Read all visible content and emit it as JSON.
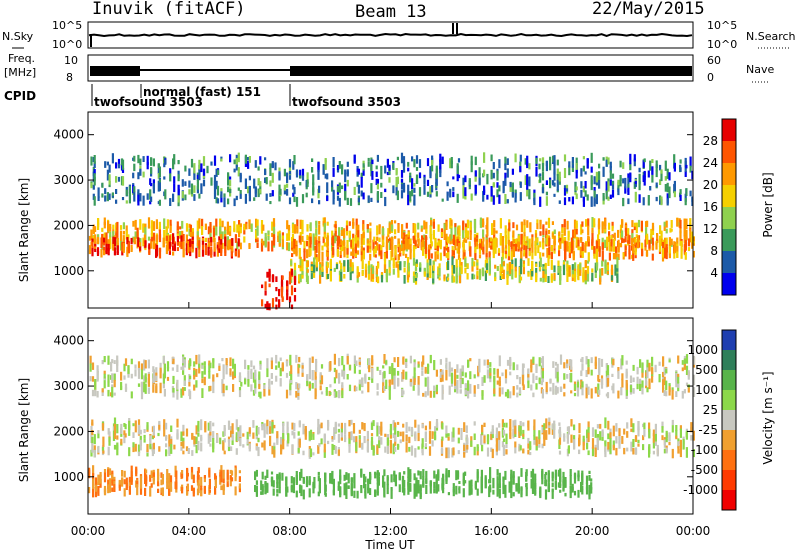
{
  "header": {
    "station": "Inuvik (fitACF)",
    "beam": "Beam 13",
    "date": "22/May/2015"
  },
  "noise_panel": {
    "left_label": "N.Sky",
    "left_ticks": [
      "10^5",
      "10^0"
    ],
    "right_ticks": [
      "10^5",
      "10^0"
    ],
    "right_label": "N.Search"
  },
  "freq_panel": {
    "left_label_top": "Freq.",
    "left_label_unit": "[MHz]",
    "left_ticks": [
      "10",
      "8"
    ],
    "right_ticks": [
      "60",
      "0"
    ],
    "right_label": "Nave"
  },
  "cpid": {
    "label": "CPID",
    "segments": [
      {
        "start_hour": 0,
        "text": "twofsound 3503"
      },
      {
        "start_hour": 1.75,
        "text": "normal (fast) 151"
      },
      {
        "start_hour": 7.9,
        "text": "twofsound 3503"
      }
    ]
  },
  "axes": {
    "ylabel": "Slant Range [km]",
    "xlabel": "Time UT",
    "y_ticks": [
      "4000",
      "3000",
      "2000",
      "1000"
    ],
    "x_ticks": [
      "00:00",
      "04:00",
      "08:00",
      "12:00",
      "16:00",
      "20:00",
      "00:00"
    ]
  },
  "power_colorbar": {
    "title": "Power [dB]",
    "labels": [
      "28",
      "24",
      "20",
      "16",
      "12",
      "8",
      "4"
    ],
    "colors": [
      "#e60000",
      "#ff5500",
      "#ff9900",
      "#f5d000",
      "#8fd14f",
      "#3a9a5a",
      "#1c5aa8",
      "#0000ee"
    ]
  },
  "velocity_colorbar": {
    "title": "Velocity [m s⁻¹]",
    "labels": [
      "1000",
      "500",
      "100",
      "25",
      "-25",
      "-100",
      "-500",
      "-1000"
    ],
    "colors": [
      "#1f3fb0",
      "#2f7f5a",
      "#58b44a",
      "#8cd84a",
      "#c8c8c0",
      "#f0a030",
      "#ff7010",
      "#ff3a00",
      "#f00000"
    ]
  },
  "chart_data": [
    {
      "type": "heatmap",
      "title": "Power [dB]",
      "xlabel": "Time UT",
      "ylabel": "Slant Range [km]",
      "xlim": [
        0,
        24
      ],
      "ylim": [
        180,
        4500
      ],
      "bands": [
        {
          "t0": 0,
          "t1": 24,
          "range_center": 1800,
          "range_half_width": 280,
          "power_db": 20
        },
        {
          "t0": 0,
          "t1": 6,
          "range_center": 1550,
          "range_half_width": 180,
          "power_db": 26
        },
        {
          "t0": 8,
          "t1": 24,
          "range_center": 1500,
          "range_half_width": 200,
          "power_db": 22
        },
        {
          "t0": 8,
          "t1": 21,
          "range_center": 1000,
          "range_half_width": 200,
          "power_db": 16
        },
        {
          "t0": 6.8,
          "t1": 8.2,
          "range_center": 600,
          "range_half_width": 400,
          "power_db": 30
        },
        {
          "t0": 0,
          "t1": 24,
          "range_center": 3000,
          "range_half_width": 500,
          "power_db": 8
        }
      ]
    },
    {
      "type": "heatmap",
      "title": "Velocity [m s⁻¹]",
      "xlabel": "Time UT",
      "ylabel": "Slant Range [km]",
      "xlim": [
        0,
        24
      ],
      "ylim": [
        180,
        4500
      ],
      "bands": [
        {
          "t0": 0,
          "t1": 24,
          "range_center": 1850,
          "range_half_width": 350,
          "velocity": 0
        },
        {
          "t0": 0,
          "t1": 24,
          "range_center": 3200,
          "range_half_width": 400,
          "velocity": 0
        },
        {
          "t0": 6.5,
          "t1": 20,
          "range_center": 850,
          "range_half_width": 250,
          "velocity": 400
        },
        {
          "t0": 0,
          "t1": 6,
          "range_center": 900,
          "range_half_width": 250,
          "velocity": -100
        }
      ]
    }
  ]
}
